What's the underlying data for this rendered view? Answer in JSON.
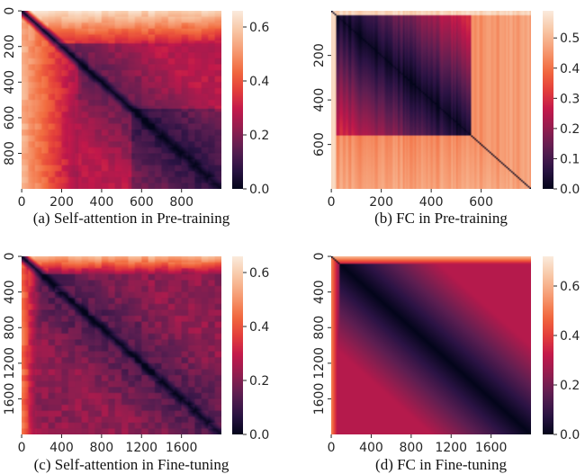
{
  "colormap": "rocket",
  "colormap_stops": [
    "#03051a",
    "#2b1344",
    "#5b1e51",
    "#8f1e4f",
    "#c1184b",
    "#e43f3a",
    "#f26c3f",
    "#f69c73",
    "#f8c6a4",
    "#faebdd"
  ],
  "chart_data": [
    {
      "type": "heatmap",
      "panel": "a",
      "caption": "(a)  Self-attention in Pre-training",
      "matrix_size": 1000,
      "x_ticks": [
        "0",
        "200",
        "400",
        "600",
        "800"
      ],
      "x_tick_values": [
        0,
        200,
        400,
        600,
        800
      ],
      "y_ticks": [
        "0",
        "200",
        "400",
        "600",
        "800"
      ],
      "y_tick_values": [
        0,
        200,
        400,
        600,
        800
      ],
      "colorbar_ticks": [
        "0.0",
        "0.2",
        "0.4",
        "0.6"
      ],
      "colorbar_tick_values": [
        0.0,
        0.2,
        0.4,
        0.6
      ],
      "value_range": [
        0.0,
        0.66
      ],
      "structure": {
        "diagonal": 0.0,
        "first_rows_value": 0.6,
        "first_rows_extent": 180,
        "first_cols_value": 0.55,
        "first_cols_extent": 280,
        "near_diagonal": 0.15,
        "far_lower_right": 0.07,
        "upper_mid": 0.28,
        "diagonal_width": 0.05
      }
    },
    {
      "type": "heatmap",
      "panel": "b",
      "caption": "(b)  FC in Pre-training",
      "matrix_size": 800,
      "x_ticks": [
        "0",
        "200",
        "400",
        "600"
      ],
      "x_tick_values": [
        0,
        200,
        400,
        600
      ],
      "y_ticks": [
        "200",
        "400",
        "600"
      ],
      "y_tick_values": [
        200,
        400,
        600
      ],
      "colorbar_ticks": [
        "0.0",
        "0.1",
        "0.2",
        "0.3",
        "0.4",
        "0.5"
      ],
      "colorbar_tick_values": [
        0.0,
        0.1,
        0.2,
        0.3,
        0.4,
        0.5
      ],
      "value_range": [
        0.0,
        0.59
      ],
      "structure": {
        "diagonal": 0.0,
        "block_boundary": 560,
        "inside_block_near": 0.02,
        "inside_block_far": 0.28,
        "outside_block": 0.47,
        "first_cols_value": 0.55,
        "first_cols_extent": 20
      }
    },
    {
      "type": "heatmap",
      "panel": "c",
      "caption": "(c)  Self-attention in Fine-tuning",
      "matrix_size": 2000,
      "x_ticks": [
        "0",
        "400",
        "800",
        "1200",
        "1600"
      ],
      "x_tick_values": [
        0,
        400,
        800,
        1200,
        1600
      ],
      "y_ticks": [
        "0",
        "400",
        "800",
        "1200",
        "1600"
      ],
      "y_tick_values": [
        0,
        400,
        800,
        1200,
        1600
      ],
      "colorbar_ticks": [
        "0.0",
        "0.2",
        "0.4",
        "0.6"
      ],
      "colorbar_tick_values": [
        0.0,
        0.2,
        0.4,
        0.6
      ],
      "value_range": [
        0.0,
        0.66
      ],
      "structure": {
        "diagonal": 0.0,
        "first_rows_value": 0.55,
        "first_rows_extent": 200,
        "first_cols_value": 0.45,
        "first_cols_extent": 200,
        "near_diagonal": 0.12,
        "far_value": 0.22,
        "diagonal_width": 0.05
      }
    },
    {
      "type": "heatmap",
      "panel": "d",
      "caption": "(d)  FC in Fine-tuning",
      "matrix_size": 2000,
      "x_ticks": [
        "0",
        "400",
        "800",
        "1200",
        "1600"
      ],
      "x_tick_values": [
        0,
        400,
        800,
        1200,
        1600
      ],
      "y_ticks": [
        "0",
        "400",
        "800",
        "1200",
        "1600"
      ],
      "y_tick_values": [
        0,
        400,
        800,
        1200,
        1600
      ],
      "colorbar_ticks": [
        "0.0",
        "0.2",
        "0.4",
        "0.6"
      ],
      "colorbar_tick_values": [
        0.0,
        0.2,
        0.4,
        0.6
      ],
      "value_range": [
        0.0,
        0.72
      ],
      "structure": {
        "diagonal": 0.0,
        "first_rows_value": 0.6,
        "first_rows_extent": 80,
        "first_cols_value": 0.5,
        "first_cols_extent": 80,
        "far_value": 0.3,
        "diagonal_width": 0.5
      }
    }
  ]
}
